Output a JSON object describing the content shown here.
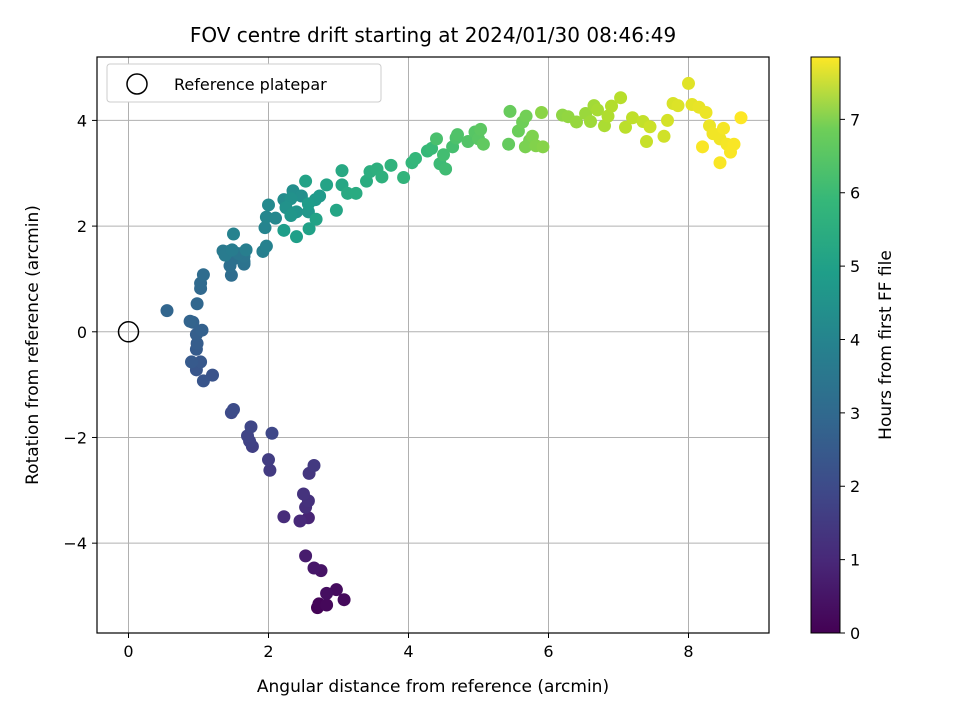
{
  "chart_data": {
    "type": "scatter",
    "title": "FOV centre drift starting at 2024/01/30 08:46:49",
    "xlabel": "Angular distance from reference (arcmin)",
    "ylabel": "Rotation from reference (arcmin)",
    "xlim": [
      -0.45,
      9.15
    ],
    "ylim": [
      -5.7,
      5.2
    ],
    "x_ticks": [
      0,
      2,
      4,
      6,
      8
    ],
    "x_tick_labels": [
      "0",
      "2",
      "4",
      "6",
      "8"
    ],
    "y_ticks": [
      -4,
      -2,
      0,
      2,
      4
    ],
    "y_tick_labels": [
      "−4",
      "−2",
      "0",
      "2",
      "4"
    ],
    "grid": true,
    "legend": {
      "placement": "top-left",
      "entries": [
        "Reference platepar"
      ]
    },
    "reference_point": {
      "x": 0,
      "y": 0,
      "marker": "open-circle"
    },
    "colormap": "viridis",
    "colorbar": {
      "label": "Hours from first FF file",
      "range": [
        0,
        7.85
      ],
      "ticks": [
        0,
        1,
        2,
        3,
        4,
        5,
        6,
        7
      ],
      "tick_labels": [
        "0",
        "1",
        "2",
        "3",
        "4",
        "5",
        "6",
        "7"
      ]
    },
    "series": [
      {
        "points": [
          [
            2.7,
            -5.22,
            0.05
          ],
          [
            2.72,
            -5.15,
            0.1
          ],
          [
            2.83,
            -5.17,
            0.15
          ],
          [
            3.08,
            -5.07,
            0.2
          ],
          [
            2.97,
            -4.88,
            0.25
          ],
          [
            2.83,
            -4.95,
            0.3
          ],
          [
            2.75,
            -4.52,
            0.4
          ],
          [
            2.65,
            -4.47,
            0.5
          ],
          [
            2.53,
            -4.24,
            0.6
          ],
          [
            2.57,
            -3.52,
            0.8
          ],
          [
            2.45,
            -3.58,
            0.9
          ],
          [
            2.22,
            -3.5,
            1.0
          ],
          [
            2.53,
            -3.32,
            1.05
          ],
          [
            2.57,
            -3.2,
            1.1
          ],
          [
            2.5,
            -3.07,
            1.15
          ],
          [
            2.58,
            -2.68,
            1.25
          ],
          [
            2.65,
            -2.53,
            1.3
          ],
          [
            2.02,
            -2.62,
            1.35
          ],
          [
            2.0,
            -2.42,
            1.4
          ],
          [
            1.77,
            -2.17,
            1.5
          ],
          [
            1.73,
            -2.07,
            1.55
          ],
          [
            1.7,
            -1.97,
            1.6
          ],
          [
            1.75,
            -1.8,
            1.65
          ],
          [
            2.05,
            -1.92,
            1.7
          ],
          [
            1.47,
            -1.53,
            1.75
          ],
          [
            1.5,
            -1.47,
            1.8
          ],
          [
            1.2,
            -0.82,
            2.0
          ],
          [
            1.07,
            -0.93,
            2.05
          ],
          [
            0.97,
            -0.72,
            2.1
          ],
          [
            1.03,
            -0.57,
            2.15
          ],
          [
            0.9,
            -0.57,
            2.2
          ],
          [
            0.97,
            -0.33,
            2.25
          ],
          [
            0.98,
            -0.22,
            2.3
          ],
          [
            0.97,
            -0.05,
            2.35
          ],
          [
            1.05,
            0.03,
            2.4
          ],
          [
            0.92,
            0.18,
            2.45
          ],
          [
            0.88,
            0.2,
            2.5
          ],
          [
            0.55,
            0.4,
            2.55
          ],
          [
            0.98,
            0.53,
            2.6
          ],
          [
            1.03,
            0.82,
            2.65
          ],
          [
            1.03,
            0.92,
            2.7
          ],
          [
            1.07,
            1.08,
            2.75
          ],
          [
            1.47,
            1.07,
            2.8
          ],
          [
            1.45,
            1.25,
            2.85
          ],
          [
            1.5,
            1.38,
            2.9
          ],
          [
            1.65,
            1.28,
            2.95
          ],
          [
            1.65,
            1.33,
            3.0
          ],
          [
            1.65,
            1.43,
            3.05
          ],
          [
            1.57,
            1.48,
            3.1
          ],
          [
            1.43,
            1.52,
            3.15
          ],
          [
            1.35,
            1.53,
            3.2
          ],
          [
            1.38,
            1.45,
            3.25
          ],
          [
            1.48,
            1.55,
            3.3
          ],
          [
            1.68,
            1.55,
            3.35
          ],
          [
            1.92,
            1.52,
            3.4
          ],
          [
            1.97,
            1.62,
            3.45
          ],
          [
            1.5,
            1.85,
            3.5
          ],
          [
            1.95,
            1.97,
            3.55
          ],
          [
            1.97,
            2.17,
            3.6
          ],
          [
            2.1,
            2.15,
            3.65
          ],
          [
            2.0,
            2.4,
            3.7
          ],
          [
            2.22,
            2.5,
            3.8
          ],
          [
            2.35,
            2.67,
            3.85
          ],
          [
            2.47,
            2.57,
            3.9
          ],
          [
            2.32,
            2.52,
            3.95
          ],
          [
            2.25,
            2.35,
            4.0
          ],
          [
            2.4,
            2.27,
            4.05
          ],
          [
            2.32,
            2.2,
            4.1
          ],
          [
            2.57,
            2.27,
            4.15
          ],
          [
            2.67,
            2.5,
            4.2
          ],
          [
            2.73,
            2.57,
            4.25
          ],
          [
            2.57,
            2.42,
            4.3
          ],
          [
            2.22,
            1.92,
            4.35
          ],
          [
            2.4,
            1.8,
            4.4
          ],
          [
            2.58,
            1.95,
            4.45
          ],
          [
            2.68,
            2.13,
            4.5
          ],
          [
            2.53,
            2.85,
            4.5
          ],
          [
            2.83,
            2.78,
            4.55
          ],
          [
            2.97,
            2.3,
            4.6
          ],
          [
            3.05,
            2.78,
            4.65
          ],
          [
            3.05,
            3.05,
            4.7
          ],
          [
            3.13,
            2.62,
            4.75
          ],
          [
            3.25,
            2.62,
            4.8
          ],
          [
            3.4,
            2.85,
            4.85
          ],
          [
            3.45,
            3.03,
            4.9
          ],
          [
            3.55,
            3.08,
            4.95
          ],
          [
            3.62,
            2.93,
            5.0
          ],
          [
            3.75,
            3.15,
            5.05
          ],
          [
            3.93,
            2.92,
            5.1
          ],
          [
            4.05,
            3.2,
            5.15
          ],
          [
            4.1,
            3.28,
            5.2
          ],
          [
            4.27,
            3.42,
            5.25
          ],
          [
            4.33,
            3.47,
            5.3
          ],
          [
            4.45,
            3.18,
            5.35
          ],
          [
            4.53,
            3.08,
            5.4
          ],
          [
            4.5,
            3.35,
            5.45
          ],
          [
            4.63,
            3.5,
            5.5
          ],
          [
            4.4,
            3.65,
            5.55
          ],
          [
            4.68,
            3.67,
            5.6
          ],
          [
            4.7,
            3.73,
            5.65
          ],
          [
            4.85,
            3.6,
            5.7
          ],
          [
            4.95,
            3.78,
            5.75
          ],
          [
            5.0,
            3.65,
            5.8
          ],
          [
            5.03,
            3.83,
            5.85
          ],
          [
            5.07,
            3.55,
            5.9
          ],
          [
            5.43,
            3.55,
            5.95
          ],
          [
            5.45,
            4.17,
            6.0
          ],
          [
            5.57,
            3.8,
            6.05
          ],
          [
            5.63,
            3.97,
            6.1
          ],
          [
            5.68,
            4.08,
            6.15
          ],
          [
            5.73,
            3.62,
            6.2
          ],
          [
            5.67,
            3.5,
            6.25
          ],
          [
            5.77,
            3.7,
            6.3
          ],
          [
            5.82,
            3.52,
            6.35
          ],
          [
            5.92,
            3.5,
            6.4
          ],
          [
            5.9,
            4.15,
            6.45
          ],
          [
            6.2,
            4.1,
            6.5
          ],
          [
            6.28,
            4.07,
            6.55
          ],
          [
            6.4,
            3.97,
            6.6
          ],
          [
            6.53,
            4.13,
            6.65
          ],
          [
            6.6,
            3.98,
            6.7
          ],
          [
            6.65,
            4.28,
            6.75
          ],
          [
            6.7,
            4.2,
            6.8
          ],
          [
            6.8,
            3.9,
            6.85
          ],
          [
            6.85,
            4.08,
            6.9
          ],
          [
            6.9,
            4.27,
            6.95
          ],
          [
            7.03,
            4.43,
            7.0
          ],
          [
            7.1,
            3.87,
            7.05
          ],
          [
            7.2,
            4.05,
            7.1
          ],
          [
            7.35,
            3.98,
            7.15
          ],
          [
            7.4,
            3.6,
            7.2
          ],
          [
            7.45,
            3.88,
            7.25
          ],
          [
            7.65,
            3.7,
            7.3
          ],
          [
            7.7,
            4.0,
            7.35
          ],
          [
            7.78,
            4.32,
            7.4
          ],
          [
            7.85,
            4.28,
            7.45
          ],
          [
            8.0,
            4.7,
            7.5
          ],
          [
            8.05,
            4.3,
            7.55
          ],
          [
            8.15,
            4.25,
            7.6
          ],
          [
            8.25,
            4.15,
            7.65
          ],
          [
            8.3,
            3.9,
            7.65
          ],
          [
            8.35,
            3.75,
            7.7
          ],
          [
            8.45,
            3.65,
            7.7
          ],
          [
            8.5,
            3.85,
            7.75
          ],
          [
            8.55,
            3.55,
            7.75
          ],
          [
            8.6,
            3.4,
            7.8
          ],
          [
            8.45,
            3.2,
            7.8
          ],
          [
            8.65,
            3.55,
            7.8
          ],
          [
            8.75,
            4.05,
            7.85
          ],
          [
            8.2,
            3.5,
            7.8
          ]
        ]
      }
    ]
  }
}
